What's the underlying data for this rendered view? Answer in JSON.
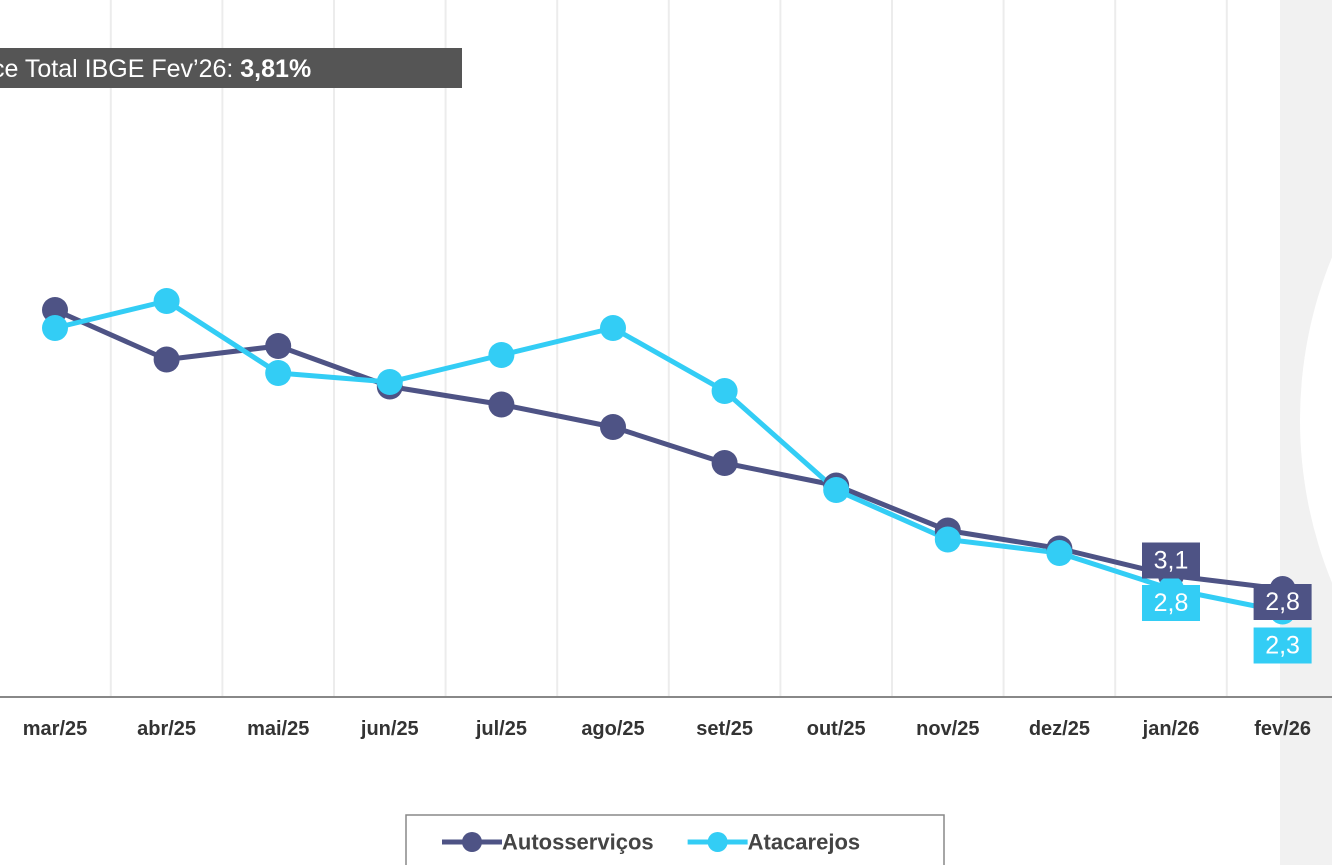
{
  "chart_data": {
    "type": "line",
    "annotation": {
      "text": "ce Total IBGE Fev’26:",
      "value": "3,81%"
    },
    "categories": [
      "mar/25",
      "abr/25",
      "mai/25",
      "jun/25",
      "jul/25",
      "ago/25",
      "set/25",
      "out/25",
      "nov/25",
      "dez/25",
      "jan/26",
      "fev/26"
    ],
    "series": [
      {
        "name": "Autosserviços",
        "color": "#4e5385",
        "values": [
          9.0,
          7.9,
          8.2,
          7.3,
          6.9,
          6.4,
          5.6,
          5.1,
          4.1,
          3.7,
          3.1,
          2.8
        ],
        "value_labels": [
          null,
          null,
          null,
          null,
          null,
          null,
          null,
          null,
          null,
          null,
          "3,1",
          "2,8"
        ]
      },
      {
        "name": "Atacarejos",
        "color": "#33cdf5",
        "values": [
          8.6,
          9.2,
          7.6,
          7.4,
          8.0,
          8.6,
          7.2,
          5.0,
          3.9,
          3.6,
          2.8,
          2.3
        ],
        "value_labels": [
          null,
          null,
          null,
          null,
          null,
          null,
          null,
          null,
          null,
          null,
          "2,8",
          "2,3"
        ]
      }
    ],
    "ylim": [
      0,
      15
    ],
    "grid": true,
    "legend": "bottom"
  }
}
